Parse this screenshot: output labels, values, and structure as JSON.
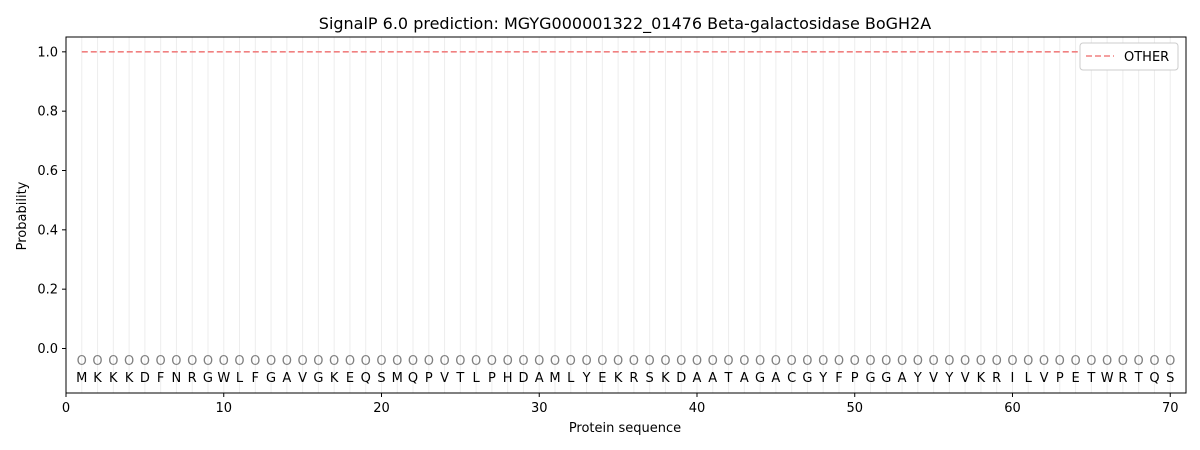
{
  "chart_data": {
    "type": "line",
    "title": "SignalP 6.0 prediction: MGYG000001322_01476 Beta-galactosidase BoGH2A",
    "xlabel": "Protein sequence",
    "ylabel": "Probability",
    "xlim": [
      0,
      71
    ],
    "ylim": [
      -0.15,
      1.05
    ],
    "x_ticks": [
      0,
      10,
      20,
      30,
      40,
      50,
      60,
      70
    ],
    "y_ticks": [
      0.0,
      0.2,
      0.4,
      0.6,
      0.8,
      1.0
    ],
    "y_tick_labels": [
      "0.0",
      "0.2",
      "0.4",
      "0.6",
      "0.8",
      "1.0"
    ],
    "grid": "vertical lines at each residue",
    "legend_position": "top-right",
    "sequence": [
      "M",
      "K",
      "K",
      "K",
      "D",
      "F",
      "N",
      "R",
      "G",
      "W",
      "L",
      "F",
      "G",
      "A",
      "V",
      "G",
      "K",
      "E",
      "Q",
      "S",
      "M",
      "Q",
      "P",
      "V",
      "T",
      "L",
      "P",
      "H",
      "D",
      "A",
      "M",
      "L",
      "Y",
      "E",
      "K",
      "R",
      "S",
      "K",
      "D",
      "A",
      "A",
      "T",
      "A",
      "G",
      "A",
      "C",
      "G",
      "Y",
      "F",
      "P",
      "G",
      "G",
      "A",
      "Y",
      "V",
      "Y",
      "V",
      "K",
      "R",
      "I",
      "L",
      "V",
      "P",
      "E",
      "T",
      "W",
      "R",
      "T",
      "Q",
      "S"
    ],
    "predicted_labels": [
      "O",
      "O",
      "O",
      "O",
      "O",
      "O",
      "O",
      "O",
      "O",
      "O",
      "O",
      "O",
      "O",
      "O",
      "O",
      "O",
      "O",
      "O",
      "O",
      "O",
      "O",
      "O",
      "O",
      "O",
      "O",
      "O",
      "O",
      "O",
      "O",
      "O",
      "O",
      "O",
      "O",
      "O",
      "O",
      "O",
      "O",
      "O",
      "O",
      "O",
      "O",
      "O",
      "O",
      "O",
      "O",
      "O",
      "O",
      "O",
      "O",
      "O",
      "O",
      "O",
      "O",
      "O",
      "O",
      "O",
      "O",
      "O",
      "O",
      "O",
      "O",
      "O",
      "O",
      "O",
      "O",
      "O",
      "O",
      "O",
      "O",
      "O"
    ],
    "series": [
      {
        "name": "OTHER",
        "color": "#f08080",
        "style": "dashed",
        "x_start": 1,
        "x_end": 70,
        "value": 1.0
      }
    ]
  }
}
